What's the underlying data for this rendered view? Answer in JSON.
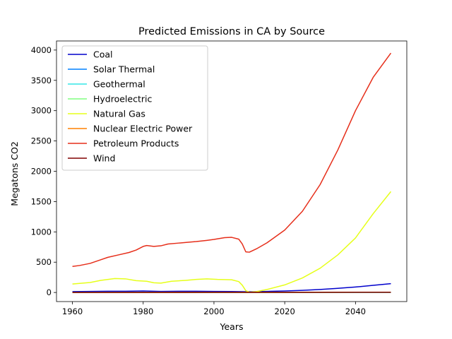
{
  "chart_data": {
    "type": "line",
    "title": "Predicted Emissions in CA by Source",
    "xlabel": "Years",
    "ylabel": "Megatons CO2",
    "xlim": [
      1955.5,
      2054.5
    ],
    "ylim": [
      -150,
      4150
    ],
    "xticks": [
      1960,
      1980,
      2000,
      2020,
      2040
    ],
    "yticks": [
      0,
      500,
      1000,
      1500,
      2000,
      2500,
      3000,
      3500,
      4000
    ],
    "grid": false,
    "legend": "top-left",
    "series": [
      {
        "name": "Coal",
        "color": "#0000cc",
        "points": [
          [
            1960,
            15
          ],
          [
            1965,
            17
          ],
          [
            1970,
            20
          ],
          [
            1975,
            20
          ],
          [
            1980,
            25
          ],
          [
            1985,
            18
          ],
          [
            1990,
            20
          ],
          [
            1995,
            20
          ],
          [
            2000,
            18
          ],
          [
            2005,
            16
          ],
          [
            2010,
            12
          ],
          [
            2015,
            18
          ],
          [
            2020,
            25
          ],
          [
            2025,
            35
          ],
          [
            2030,
            50
          ],
          [
            2035,
            68
          ],
          [
            2040,
            90
          ],
          [
            2045,
            118
          ],
          [
            2050,
            145
          ]
        ]
      },
      {
        "name": "Solar Thermal",
        "color": "#0080ff",
        "points": [
          [
            1960,
            0
          ],
          [
            1980,
            0
          ],
          [
            2000,
            0
          ],
          [
            2020,
            1
          ],
          [
            2050,
            3
          ]
        ]
      },
      {
        "name": "Geothermal",
        "color": "#33e6e6",
        "points": [
          [
            1960,
            0
          ],
          [
            1980,
            1
          ],
          [
            2000,
            1
          ],
          [
            2020,
            1
          ],
          [
            2050,
            2
          ]
        ]
      },
      {
        "name": "Hydroelectric",
        "color": "#80ff80",
        "points": [
          [
            1960,
            0
          ],
          [
            1980,
            1
          ],
          [
            2000,
            1
          ],
          [
            2020,
            2
          ],
          [
            2050,
            3
          ]
        ]
      },
      {
        "name": "Natural Gas",
        "color": "#e6ff19",
        "points": [
          [
            1960,
            140
          ],
          [
            1965,
            165
          ],
          [
            1968,
            200
          ],
          [
            1972,
            230
          ],
          [
            1975,
            225
          ],
          [
            1978,
            195
          ],
          [
            1981,
            185
          ],
          [
            1983,
            160
          ],
          [
            1985,
            155
          ],
          [
            1988,
            185
          ],
          [
            1992,
            200
          ],
          [
            1995,
            215
          ],
          [
            1998,
            225
          ],
          [
            2001,
            215
          ],
          [
            2005,
            210
          ],
          [
            2007,
            180
          ],
          [
            2008,
            120
          ],
          [
            2009,
            30
          ],
          [
            2010,
            5
          ],
          [
            2012,
            15
          ],
          [
            2015,
            50
          ],
          [
            2020,
            125
          ],
          [
            2025,
            240
          ],
          [
            2030,
            400
          ],
          [
            2035,
            620
          ],
          [
            2040,
            900
          ],
          [
            2045,
            1300
          ],
          [
            2050,
            1665
          ]
        ]
      },
      {
        "name": "Nuclear Electric Power",
        "color": "#ff8000",
        "points": [
          [
            1960,
            0
          ],
          [
            1980,
            2
          ],
          [
            2000,
            3
          ],
          [
            2020,
            3
          ],
          [
            2050,
            4
          ]
        ]
      },
      {
        "name": "Petroleum Products",
        "color": "#e62e1a",
        "points": [
          [
            1960,
            430
          ],
          [
            1962,
            445
          ],
          [
            1965,
            480
          ],
          [
            1968,
            540
          ],
          [
            1970,
            580
          ],
          [
            1973,
            620
          ],
          [
            1976,
            660
          ],
          [
            1978,
            700
          ],
          [
            1980,
            760
          ],
          [
            1981,
            775
          ],
          [
            1983,
            760
          ],
          [
            1985,
            770
          ],
          [
            1987,
            800
          ],
          [
            1990,
            815
          ],
          [
            1993,
            830
          ],
          [
            1995,
            840
          ],
          [
            1998,
            860
          ],
          [
            2000,
            875
          ],
          [
            2003,
            905
          ],
          [
            2005,
            910
          ],
          [
            2007,
            880
          ],
          [
            2008,
            800
          ],
          [
            2009,
            670
          ],
          [
            2010,
            665
          ],
          [
            2012,
            720
          ],
          [
            2015,
            820
          ],
          [
            2020,
            1030
          ],
          [
            2025,
            1340
          ],
          [
            2030,
            1780
          ],
          [
            2035,
            2350
          ],
          [
            2040,
            3000
          ],
          [
            2045,
            3550
          ],
          [
            2050,
            3950
          ]
        ]
      },
      {
        "name": "Wind",
        "color": "#800000",
        "points": [
          [
            1960,
            0
          ],
          [
            1980,
            0
          ],
          [
            2000,
            1
          ],
          [
            2020,
            2
          ],
          [
            2050,
            3
          ]
        ]
      }
    ]
  }
}
